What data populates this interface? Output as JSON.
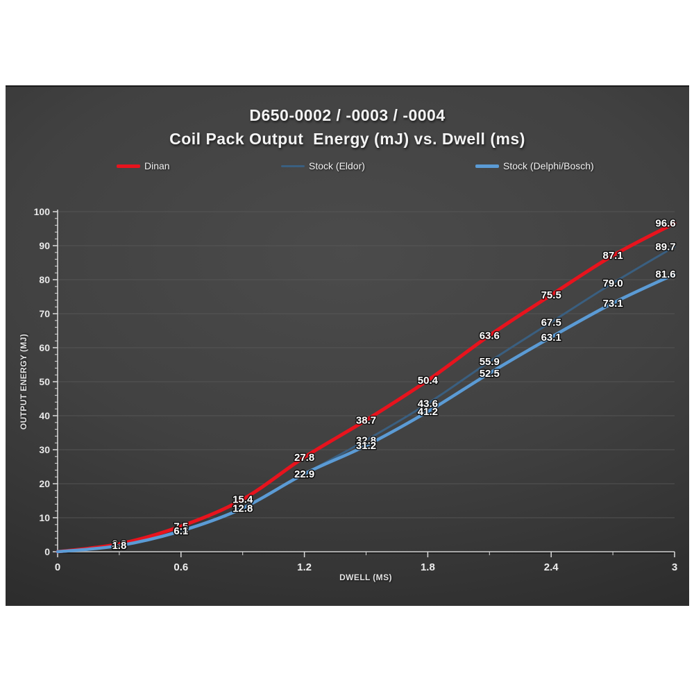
{
  "chart": {
    "title_line1": "D650-0002 / -0003 / -0004",
    "title_line2": "Coil Pack Output  Energy (mJ) vs. Dwell (ms)"
  },
  "chart_data": {
    "type": "line",
    "title": "D650-0002 / -0003 / -0004",
    "subtitle": "Coil Pack Output Energy (mJ) vs. Dwell (ms)",
    "xlabel": "DWELL (MS)",
    "ylabel": "OUTPUT ENERGY (MJ)",
    "xlim": [
      0,
      3
    ],
    "ylim": [
      0,
      100
    ],
    "grid": "horizontal-major",
    "legend_position": "top",
    "x": [
      0,
      0.3,
      0.6,
      0.9,
      1.2,
      1.5,
      1.8,
      2.1,
      2.4,
      2.7,
      3.0
    ],
    "x_ticks": {
      "values": [
        0,
        0.6,
        1.2,
        1.8,
        2.4,
        3
      ],
      "labels": [
        "0",
        "0.6",
        "1.2",
        "1.8",
        "2.4",
        "3"
      ],
      "minor_step": 0.3
    },
    "y_ticks": {
      "values": [
        0,
        10,
        20,
        30,
        40,
        50,
        60,
        70,
        80,
        90,
        100
      ],
      "labels": [
        "0",
        "10",
        "20",
        "30",
        "40",
        "50",
        "60",
        "70",
        "80",
        "90",
        "100"
      ],
      "minor_step": 2
    },
    "colors": {
      "grid": "#5a5a5a",
      "axis_x": "#a8a8a8",
      "axis_y": "#dcdcdc",
      "data_label": "#ffffff"
    },
    "series": [
      {
        "id": "dinan",
        "name": "Dinan",
        "color": "#e8131d",
        "line_width": 5,
        "values": [
          0,
          2.3,
          7.5,
          15.4,
          27.8,
          38.7,
          50.4,
          63.6,
          75.5,
          87.1,
          96.6
        ],
        "labels": [
          "",
          "2.3",
          "7.5",
          "15.4",
          "27.8",
          "38.7",
          "50.4",
          "63.6",
          "75.5",
          "87.1",
          "96.6"
        ]
      },
      {
        "id": "stock-eldor",
        "name": "Stock (Eldor)",
        "color": "#3a5f80",
        "line_width": 3,
        "values": [
          0,
          1.8,
          6.3,
          12.9,
          22.9,
          32.8,
          43.6,
          55.9,
          67.5,
          79.0,
          89.7
        ],
        "labels": [
          "",
          "1.8",
          "6.3",
          "12.9",
          "22.9",
          "32.8",
          "43.6",
          "55.9",
          "67.5",
          "79.0",
          "89.7"
        ]
      },
      {
        "id": "stock-delphi-bosch",
        "name": "Stock (Delphi/Bosch)",
        "color": "#5b9bd5",
        "line_width": 4.5,
        "values": [
          0,
          1.8,
          6.1,
          12.8,
          22.9,
          31.2,
          41.2,
          52.5,
          63.1,
          73.1,
          81.6
        ],
        "labels": [
          "",
          "1.8",
          "6.1",
          "12.8",
          "22.9",
          "31.2",
          "41.2",
          "52.5",
          "63.1",
          "73.1",
          "81.6"
        ]
      }
    ]
  }
}
